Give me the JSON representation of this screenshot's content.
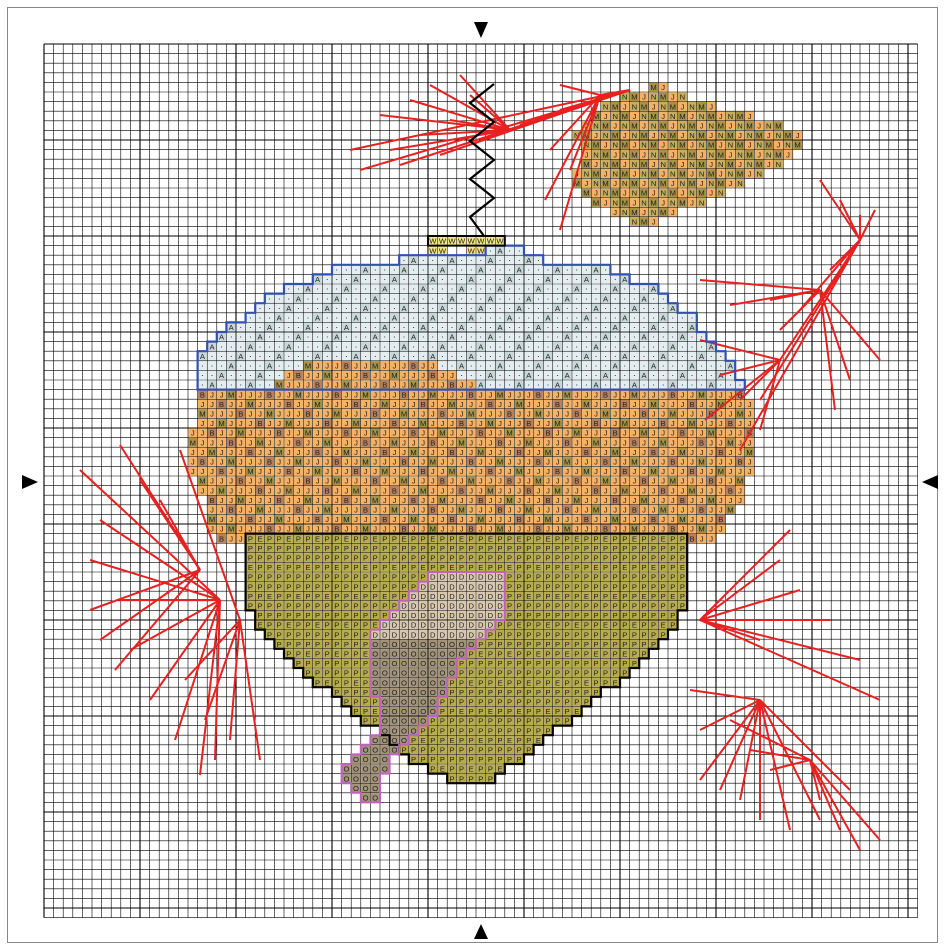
{
  "pattern": {
    "columns": 91,
    "rows": 91,
    "colors": {
      "J": "#f6b264",
      "N": "#c7ad5c",
      "M": "#a89245",
      "W": "#f2e77d",
      "A": "#c9d8d8",
      "dot": "#e4eef0",
      "B": "#b7825b",
      "P": "#b8ac4a",
      "E": "#bbae53",
      "D": "#d8c7ad",
      "O": "#a39378",
      "outline_black": "#000000",
      "outline_blue": "#3350b0",
      "outline_pink": "#c060c0",
      "backstitch_red": "#e82020",
      "grid_line": "#000000"
    },
    "symbols": [
      "J",
      "N",
      "M",
      "W",
      "A",
      "B",
      "P",
      "E",
      "D",
      "O",
      "·"
    ]
  },
  "center_markers": [
    "top",
    "bottom",
    "left",
    "right"
  ]
}
